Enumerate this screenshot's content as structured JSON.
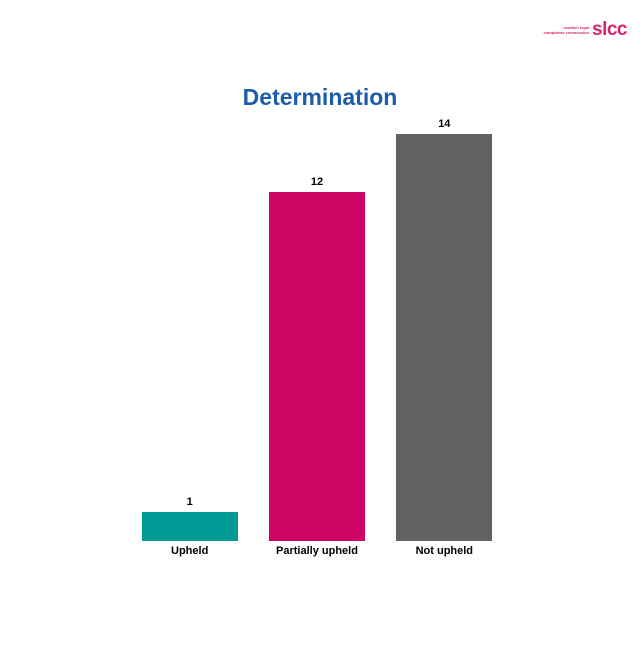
{
  "logo": {
    "brand": "slcc",
    "tagline_line1": "scottish legal",
    "tagline_line2": "complaints commission",
    "color": "#D5256D"
  },
  "chart_data": {
    "type": "bar",
    "title": "Determination",
    "title_color": "#1D5CA9",
    "categories": [
      "Upheld",
      "Partially upheld",
      "Not upheld"
    ],
    "values": [
      1,
      12,
      14
    ],
    "bar_colors": [
      "#019A94",
      "#CE0465",
      "#626265"
    ],
    "xlabel": "",
    "ylabel": "",
    "ylim": [
      0,
      14
    ],
    "grid": false,
    "legend": false,
    "data_labels": true
  }
}
